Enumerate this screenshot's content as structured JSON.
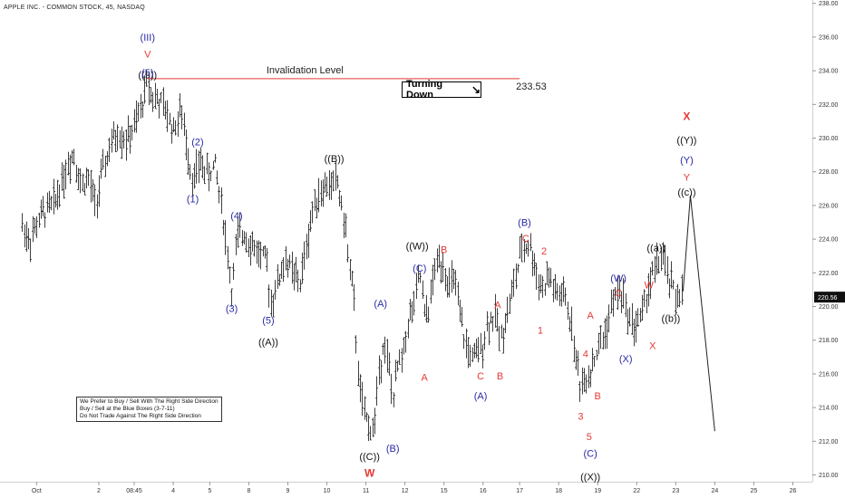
{
  "title": "APPLE INC. - COMMON STOCK, 45, NASDAQ",
  "note_lines": [
    "We Prefer to Buy / Sell With The Right Side Direction",
    "Buy / Sell at the Blue Boxes (3-7-11)",
    "Do Not Trade Against The Right Side Direction"
  ],
  "invalidation": {
    "label": "Invalidation Level",
    "value": "233.53",
    "price": 233.53,
    "color": "#e53935"
  },
  "turning": {
    "label": "Turning Down",
    "arrow": "↘"
  },
  "colors": {
    "blue": "#2a2aa8",
    "red": "#e53935",
    "black": "#111111",
    "price_tag": "#111111"
  },
  "chart_data": {
    "type": "line",
    "ylim": [
      209.6,
      238.2
    ],
    "y_ticks": [
      210,
      212,
      214,
      216,
      218,
      220,
      222,
      224,
      226,
      228,
      230,
      232,
      234,
      236,
      238
    ],
    "y_tick_labels": [
      "210.00",
      "212.00",
      "214.00",
      "216.00",
      "218.00",
      "220.00",
      "222.00",
      "224.00",
      "226.00",
      "228.00",
      "230.00",
      "232.00",
      "234.00",
      "236.00",
      "238.00"
    ],
    "current_price": {
      "value": 220.56,
      "label": "220.56"
    },
    "x_ticks": [
      {
        "label": "Oct",
        "t": 0.6
      },
      {
        "label": "2",
        "t": 3.15
      },
      {
        "label": "08:45",
        "t": 4.6
      },
      {
        "label": "4",
        "t": 6.2
      },
      {
        "label": "5",
        "t": 7.7
      },
      {
        "label": "8",
        "t": 9.3
      },
      {
        "label": "9",
        "t": 10.9
      },
      {
        "label": "10",
        "t": 12.5
      },
      {
        "label": "11",
        "t": 14.1
      },
      {
        "label": "12",
        "t": 15.7
      },
      {
        "label": "15",
        "t": 17.3
      },
      {
        "label": "16",
        "t": 18.9
      },
      {
        "label": "17",
        "t": 20.4
      },
      {
        "label": "18",
        "t": 22.0
      },
      {
        "label": "19",
        "t": 23.6
      },
      {
        "label": "22",
        "t": 25.2
      },
      {
        "label": "23",
        "t": 26.8
      },
      {
        "label": "24",
        "t": 28.4
      },
      {
        "label": "25",
        "t": 30.0
      },
      {
        "label": "26",
        "t": 31.6
      }
    ],
    "price_path": [
      [
        0.0,
        224.8
      ],
      [
        0.3,
        223.9
      ],
      [
        0.7,
        225.2
      ],
      [
        1.0,
        225.8
      ],
      [
        1.3,
        226.1
      ],
      [
        1.5,
        227.0
      ],
      [
        1.8,
        228.2
      ],
      [
        2.1,
        229.2
      ],
      [
        2.4,
        227.2
      ],
      [
        2.7,
        227.6
      ],
      [
        3.0,
        226.0
      ],
      [
        3.3,
        228.0
      ],
      [
        3.6,
        229.5
      ],
      [
        3.9,
        230.3
      ],
      [
        4.3,
        229.9
      ],
      [
        4.6,
        230.6
      ],
      [
        4.85,
        231.7
      ],
      [
        5.0,
        232.6
      ],
      [
        5.15,
        233.45
      ],
      [
        5.3,
        232.5
      ],
      [
        5.6,
        232.2
      ],
      [
        5.9,
        231.5
      ],
      [
        6.2,
        230.5
      ],
      [
        6.5,
        231.6
      ],
      [
        6.8,
        229.1
      ],
      [
        7.0,
        227.4
      ],
      [
        7.3,
        228.6
      ],
      [
        7.6,
        227.8
      ],
      [
        7.9,
        228.4
      ],
      [
        8.2,
        225.8
      ],
      [
        8.4,
        223.2
      ],
      [
        8.6,
        220.8
      ],
      [
        8.8,
        224.0
      ],
      [
        9.1,
        224.4
      ],
      [
        9.4,
        223.7
      ],
      [
        9.7,
        223.2
      ],
      [
        10.0,
        222.6
      ],
      [
        10.2,
        220.3
      ],
      [
        10.5,
        221.6
      ],
      [
        10.8,
        222.8
      ],
      [
        11.1,
        221.9
      ],
      [
        11.4,
        221.4
      ],
      [
        11.7,
        224.1
      ],
      [
        12.0,
        226.4
      ],
      [
        12.3,
        227.0
      ],
      [
        12.6,
        227.2
      ],
      [
        12.9,
        227.5
      ],
      [
        13.2,
        225.0
      ],
      [
        13.4,
        222.7
      ],
      [
        13.6,
        220.0
      ],
      [
        13.8,
        215.5
      ],
      [
        14.0,
        213.6
      ],
      [
        14.2,
        213.0
      ],
      [
        14.4,
        212.6
      ],
      [
        14.6,
        215.8
      ],
      [
        14.8,
        218.0
      ],
      [
        15.0,
        216.6
      ],
      [
        15.2,
        214.5
      ],
      [
        15.4,
        216.5
      ],
      [
        15.6,
        217.0
      ],
      [
        15.8,
        219.1
      ],
      [
        16.1,
        220.2
      ],
      [
        16.3,
        222.1
      ],
      [
        16.5,
        219.2
      ],
      [
        16.7,
        220.1
      ],
      [
        16.9,
        222.2
      ],
      [
        17.1,
        222.8
      ],
      [
        17.3,
        222.5
      ],
      [
        17.5,
        221.0
      ],
      [
        17.7,
        221.8
      ],
      [
        17.9,
        219.6
      ],
      [
        18.2,
        217.6
      ],
      [
        18.5,
        216.8
      ],
      [
        18.8,
        217.5
      ],
      [
        19.1,
        219.1
      ],
      [
        19.4,
        219.4
      ],
      [
        19.6,
        218.0
      ],
      [
        19.9,
        219.8
      ],
      [
        20.2,
        221.6
      ],
      [
        20.5,
        223.5
      ],
      [
        20.8,
        223.7
      ],
      [
        21.0,
        222.4
      ],
      [
        21.3,
        221.0
      ],
      [
        21.6,
        221.8
      ],
      [
        21.9,
        220.6
      ],
      [
        22.2,
        220.7
      ],
      [
        22.5,
        219.0
      ],
      [
        22.7,
        216.8
      ],
      [
        22.9,
        215.3
      ],
      [
        23.1,
        215.8
      ],
      [
        23.3,
        216.3
      ],
      [
        23.6,
        217.5
      ],
      [
        23.9,
        218.5
      ],
      [
        24.2,
        220.2
      ],
      [
        24.5,
        221.1
      ],
      [
        24.8,
        219.6
      ],
      [
        25.1,
        218.8
      ],
      [
        25.4,
        219.5
      ],
      [
        25.7,
        221.4
      ],
      [
        26.0,
        222.4
      ],
      [
        26.2,
        223.0
      ],
      [
        26.5,
        221.6
      ],
      [
        26.8,
        220.6
      ],
      [
        27.1,
        220.9
      ]
    ],
    "projection": [
      [
        27.1,
        220.9
      ],
      [
        27.4,
        226.6
      ],
      [
        28.4,
        212.6
      ]
    ],
    "labels": [
      {
        "text": "(III)",
        "t": 5.15,
        "y": 236.0,
        "color": "blue"
      },
      {
        "text": "V",
        "t": 5.15,
        "y": 235.0,
        "color": "red"
      },
      {
        "text": "((5))",
        "t": 5.15,
        "y": 234.95,
        "color": "black",
        "dy": 22
      },
      {
        "text": "(5)",
        "t": 5.15,
        "y": 233.9,
        "color": "blue"
      },
      {
        "text": "(2)",
        "t": 7.2,
        "y": 229.8,
        "color": "blue"
      },
      {
        "text": "(1)",
        "t": 7.0,
        "y": 226.4,
        "color": "blue"
      },
      {
        "text": "(4)",
        "t": 8.8,
        "y": 225.4,
        "color": "blue"
      },
      {
        "text": "(3)",
        "t": 8.6,
        "y": 219.9,
        "color": "blue"
      },
      {
        "text": "(5)",
        "t": 10.1,
        "y": 219.2,
        "color": "blue"
      },
      {
        "text": "((A))",
        "t": 10.1,
        "y": 217.9,
        "color": "black"
      },
      {
        "text": "((B))",
        "t": 12.8,
        "y": 228.8,
        "color": "black"
      },
      {
        "text": "((C))",
        "t": 14.25,
        "y": 211.1,
        "color": "black"
      },
      {
        "text": "W",
        "t": 14.25,
        "y": 210.1,
        "color": "red",
        "bold": true
      },
      {
        "text": "(A)",
        "t": 14.7,
        "y": 220.2,
        "color": "blue"
      },
      {
        "text": "(B)",
        "t": 15.2,
        "y": 211.6,
        "color": "blue"
      },
      {
        "text": "((W))",
        "t": 16.2,
        "y": 223.6,
        "color": "black"
      },
      {
        "text": "(C)",
        "t": 16.3,
        "y": 222.3,
        "color": "blue"
      },
      {
        "text": "B",
        "t": 17.3,
        "y": 223.4,
        "color": "red"
      },
      {
        "text": "A",
        "t": 16.5,
        "y": 215.8,
        "color": "red"
      },
      {
        "text": "C",
        "t": 18.8,
        "y": 215.9,
        "color": "red"
      },
      {
        "text": "(A)",
        "t": 18.8,
        "y": 214.7,
        "color": "blue"
      },
      {
        "text": "A",
        "t": 19.5,
        "y": 220.1,
        "color": "red"
      },
      {
        "text": "B",
        "t": 19.6,
        "y": 215.9,
        "color": "red"
      },
      {
        "text": "(B)",
        "t": 20.6,
        "y": 225.0,
        "color": "blue"
      },
      {
        "text": "C",
        "t": 20.65,
        "y": 224.7,
        "color": "red",
        "dy": 12
      },
      {
        "text": "2",
        "t": 21.4,
        "y": 223.3,
        "color": "red"
      },
      {
        "text": "1",
        "t": 21.25,
        "y": 218.6,
        "color": "red"
      },
      {
        "text": "A",
        "t": 23.3,
        "y": 219.5,
        "color": "red"
      },
      {
        "text": "4",
        "t": 23.1,
        "y": 217.2,
        "color": "red"
      },
      {
        "text": "B",
        "t": 23.6,
        "y": 214.7,
        "color": "red"
      },
      {
        "text": "3",
        "t": 22.9,
        "y": 213.5,
        "color": "red"
      },
      {
        "text": "5",
        "t": 23.25,
        "y": 212.3,
        "color": "red"
      },
      {
        "text": "(C)",
        "t": 23.3,
        "y": 211.3,
        "color": "blue"
      },
      {
        "text": "((X))",
        "t": 23.3,
        "y": 209.9,
        "color": "black"
      },
      {
        "text": "(W)",
        "t": 24.45,
        "y": 221.7,
        "color": "blue"
      },
      {
        "text": "C",
        "t": 24.45,
        "y": 220.8,
        "color": "red"
      },
      {
        "text": "(X)",
        "t": 24.75,
        "y": 216.9,
        "color": "blue"
      },
      {
        "text": "W",
        "t": 25.7,
        "y": 221.3,
        "color": "red"
      },
      {
        "text": "X",
        "t": 25.85,
        "y": 217.7,
        "color": "red"
      },
      {
        "text": "((a))",
        "t": 26.0,
        "y": 223.5,
        "color": "black"
      },
      {
        "text": "((b))",
        "t": 26.6,
        "y": 219.3,
        "color": "black"
      },
      {
        "text": "X",
        "t": 27.25,
        "y": 231.3,
        "color": "red",
        "bold": true
      },
      {
        "text": "((Y))",
        "t": 27.25,
        "y": 229.9,
        "color": "black"
      },
      {
        "text": "(Y)",
        "t": 27.25,
        "y": 228.7,
        "color": "blue"
      },
      {
        "text": "Y",
        "t": 27.25,
        "y": 227.7,
        "color": "red"
      },
      {
        "text": "((c))",
        "t": 27.25,
        "y": 226.8,
        "color": "black"
      }
    ]
  }
}
